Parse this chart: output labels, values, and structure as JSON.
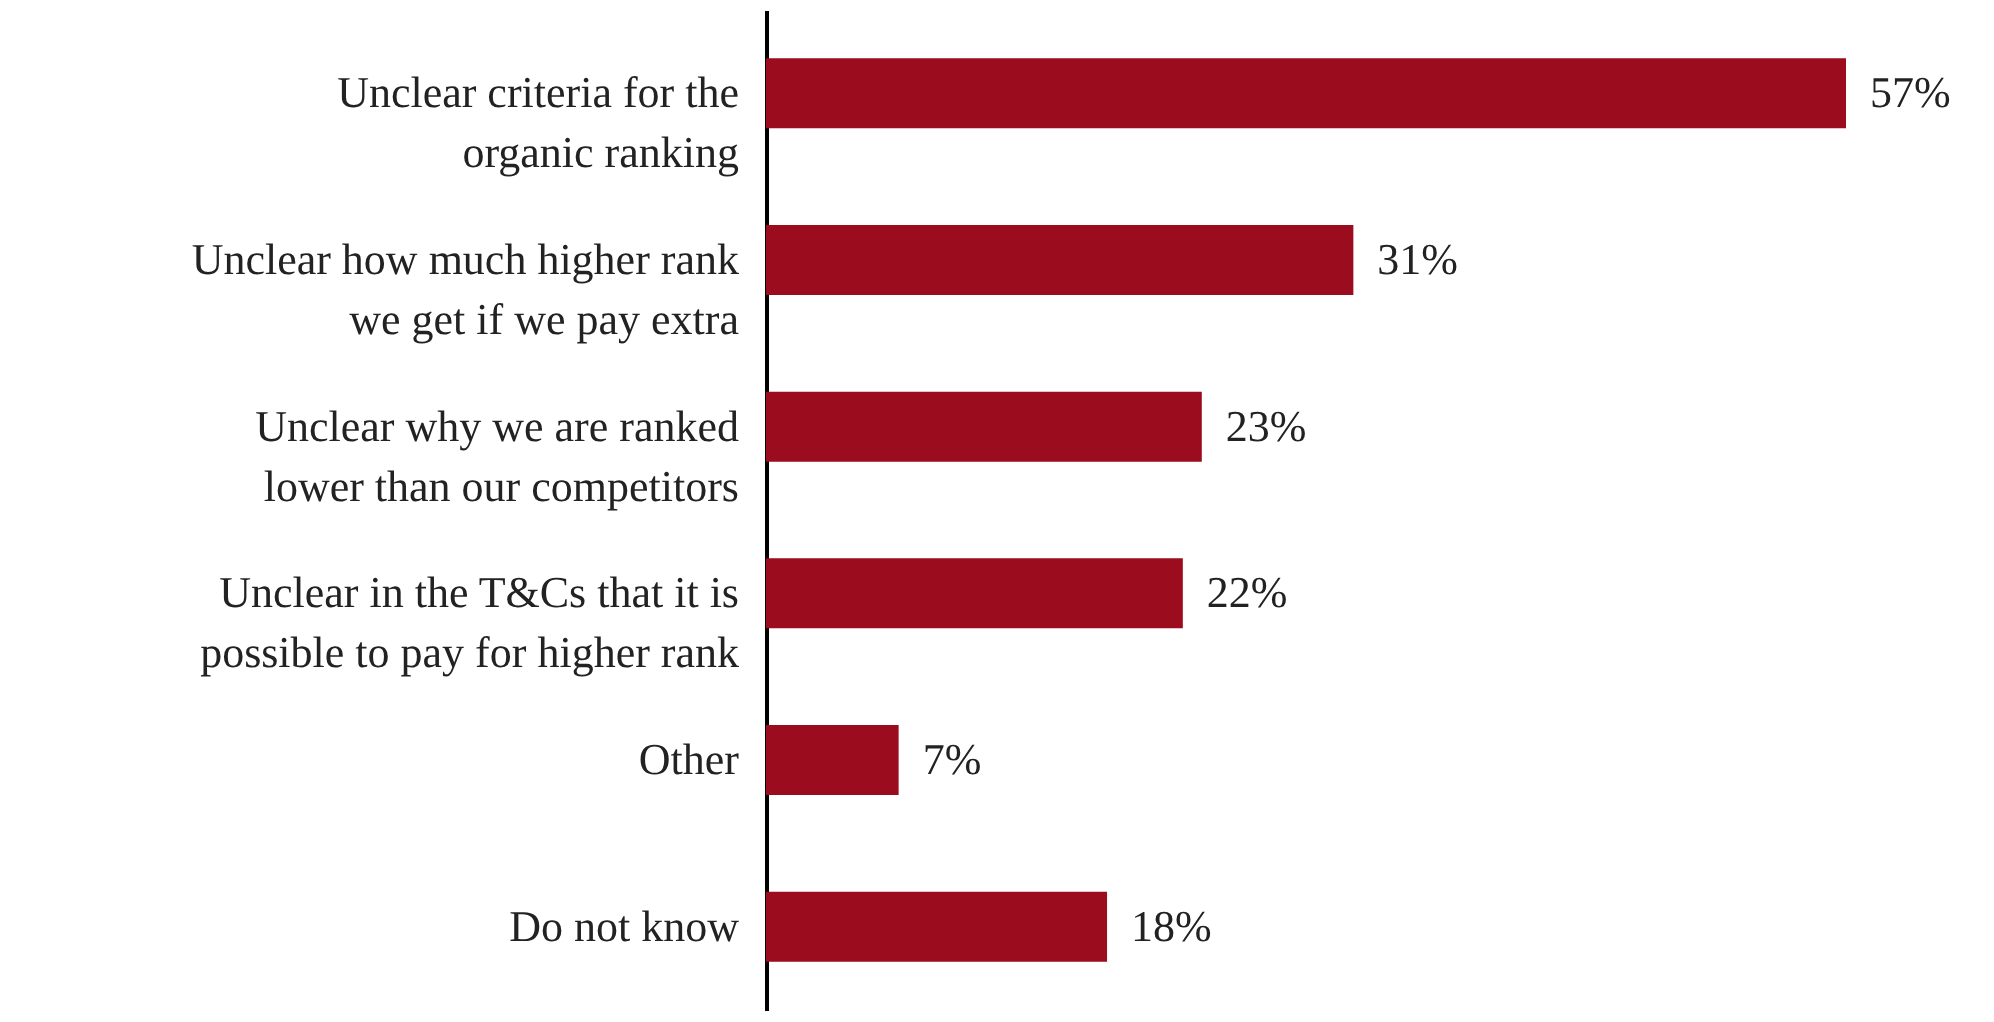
{
  "chart_data": {
    "type": "bar",
    "orientation": "horizontal",
    "categories": [
      "Unclear criteria for the organic ranking",
      "Unclear how much higher rank we get if we pay extra",
      "Unclear why we are ranked lower than our competitors",
      "Unclear in the T&Cs that it is possible to pay for higher rank",
      "Other",
      "Do not know"
    ],
    "values": [
      57,
      31,
      23,
      22,
      7,
      18
    ],
    "value_labels": [
      "57%",
      "31%",
      "23%",
      "22%",
      "7%",
      "18%"
    ],
    "color": "#9b0d1e"
  }
}
